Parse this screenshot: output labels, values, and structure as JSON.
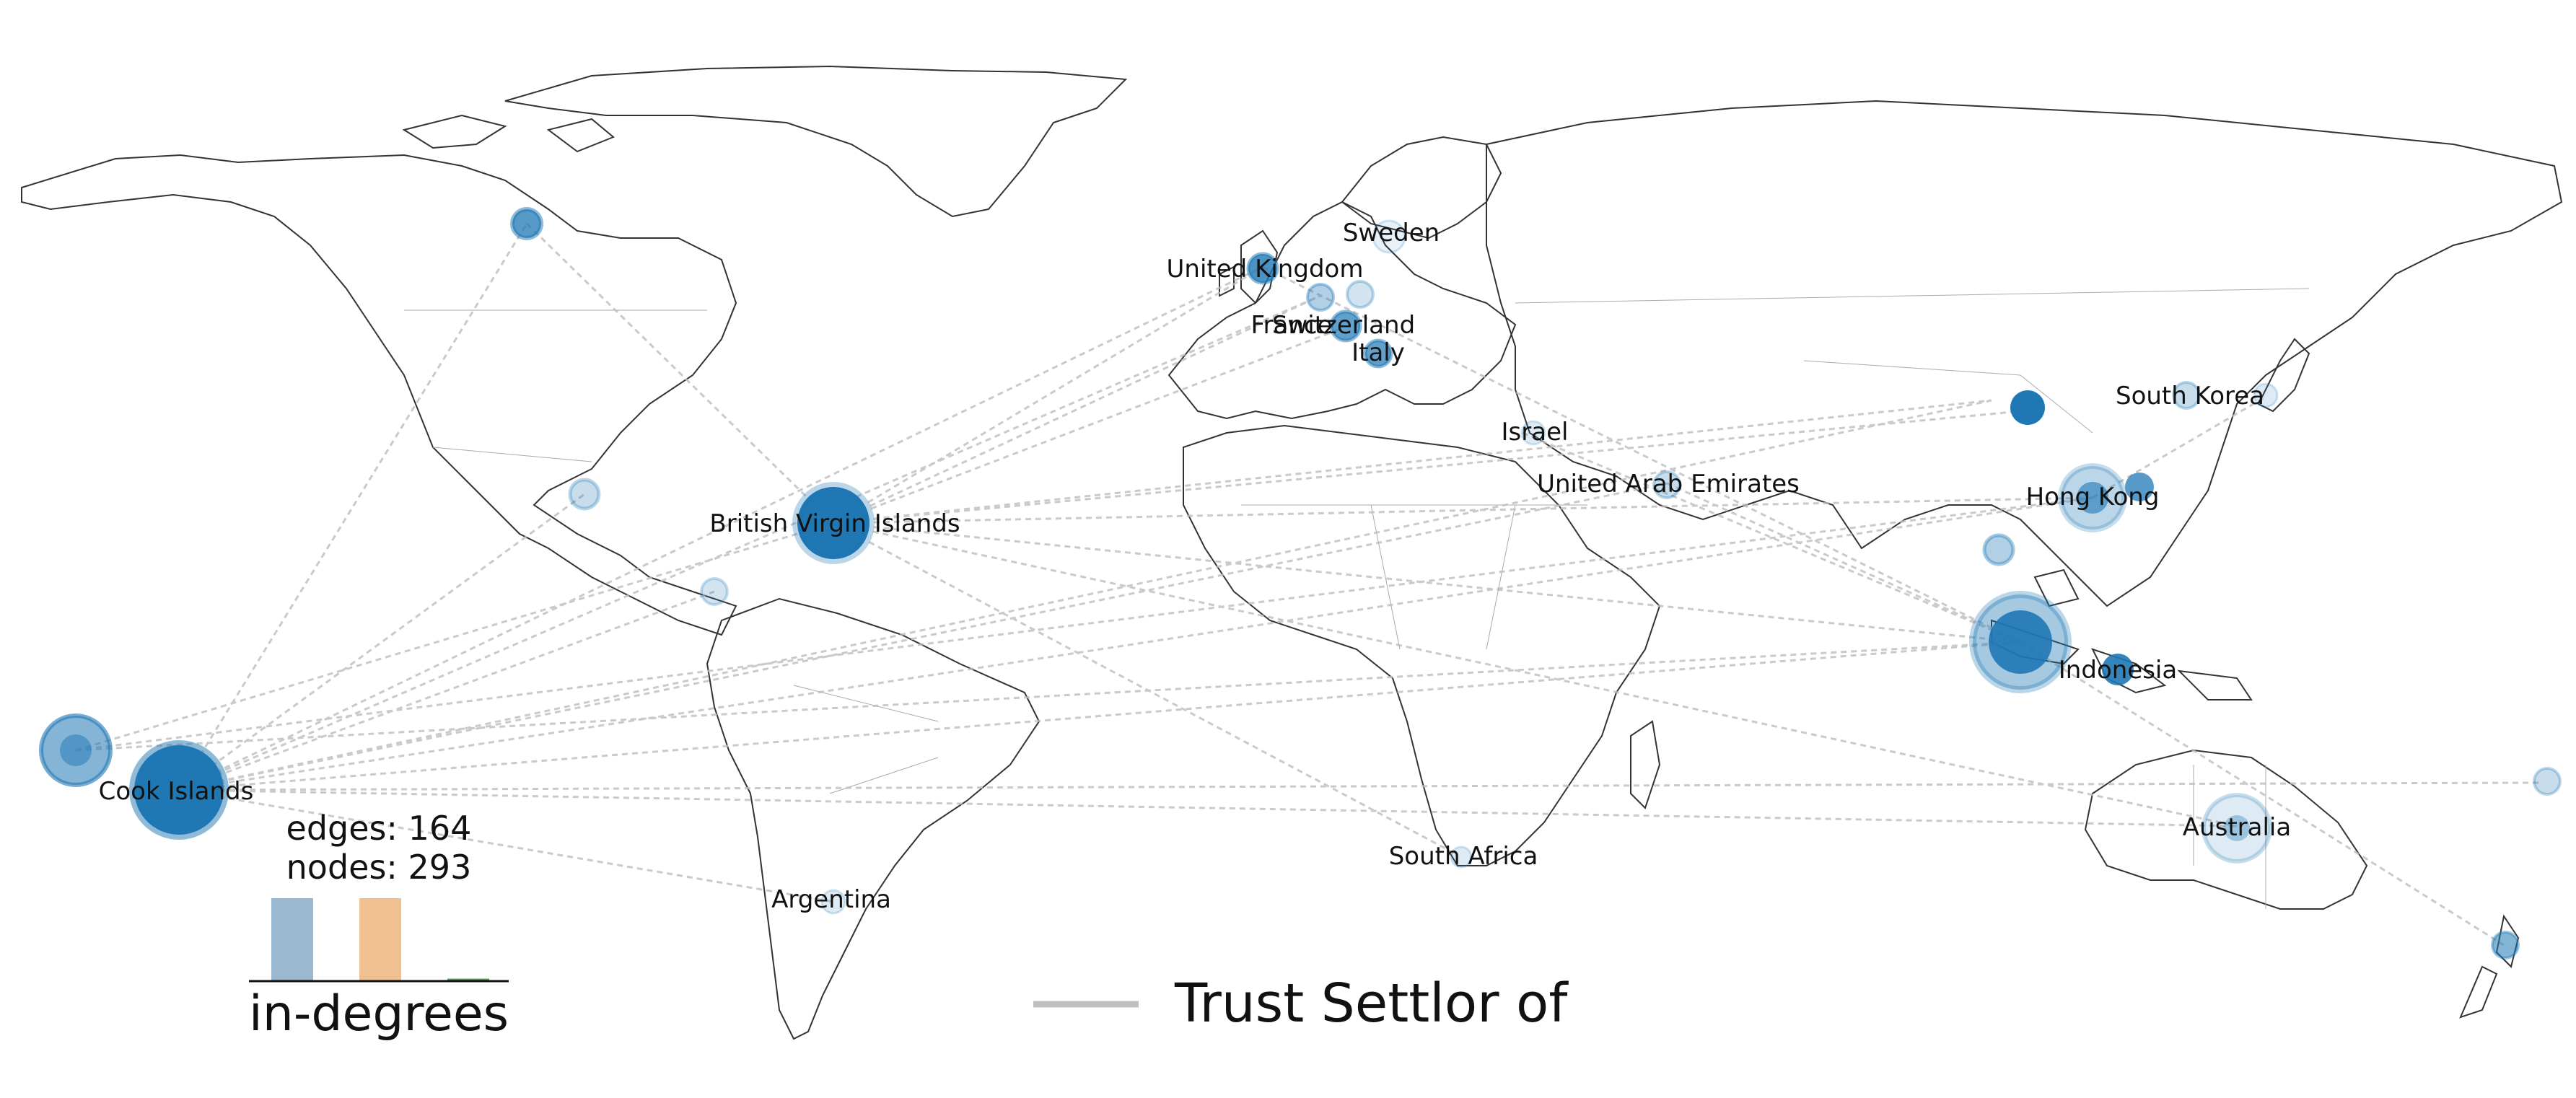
{
  "legend": {
    "edge_type": "Trust Settlor of"
  },
  "stats": {
    "edges": "edges: 164",
    "nodes": "nodes: 293"
  },
  "histogram": {
    "label": "in-degrees",
    "bars": [
      {
        "name": "blue",
        "value": 1.0,
        "color": "#9ab8cf"
      },
      {
        "name": "orange",
        "value": 1.0,
        "color": "#f0c090"
      },
      {
        "name": "green",
        "value": 0.03,
        "color": "#5a9a5a"
      }
    ]
  },
  "colors": {
    "node": "#1f77b4",
    "edge": "#b8b8b8",
    "coast": "#333333",
    "border": "#999999"
  },
  "labels": [
    {
      "id": "sweden",
      "text": "Sweden"
    },
    {
      "id": "uk",
      "text": "United Kingdom"
    },
    {
      "id": "france",
      "text": "France"
    },
    {
      "id": "switzerland",
      "text": "Switzerland"
    },
    {
      "id": "italy",
      "text": "Italy"
    },
    {
      "id": "south-korea",
      "text": "South Korea"
    },
    {
      "id": "israel",
      "text": "Israel"
    },
    {
      "id": "uae",
      "text": "United Arab Emirates"
    },
    {
      "id": "hong-kong",
      "text": "Hong Kong"
    },
    {
      "id": "bvi",
      "text": "British Virgin Islands"
    },
    {
      "id": "indonesia",
      "text": "Indonesia"
    },
    {
      "id": "cook-islands",
      "text": "Cook Islands"
    },
    {
      "id": "australia",
      "text": "Australia"
    },
    {
      "id": "south-africa",
      "text": "South Africa"
    },
    {
      "id": "argentina",
      "text": "Argentina"
    }
  ]
}
